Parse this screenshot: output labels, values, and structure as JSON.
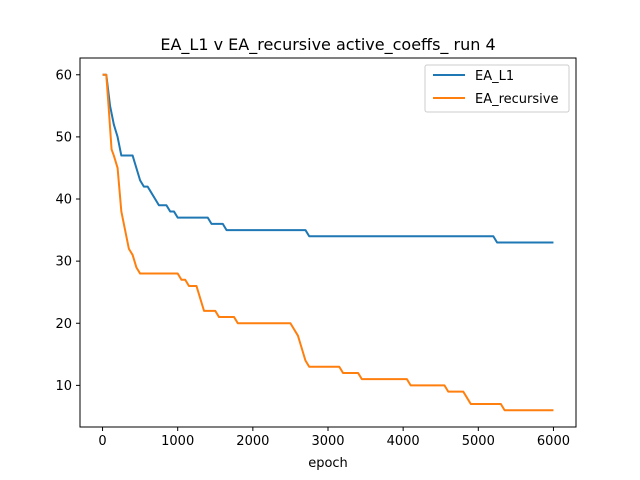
{
  "chart_data": {
    "type": "line",
    "title": "EA_L1 v EA_recursive active_coeffs_ run 4",
    "xlabel": "epoch",
    "ylabel": "",
    "xlim": [
      -300,
      6300
    ],
    "ylim": [
      3.3,
      62.7
    ],
    "xticks": [
      0,
      1000,
      2000,
      3000,
      4000,
      5000,
      6000
    ],
    "yticks": [
      10,
      20,
      30,
      40,
      50,
      60
    ],
    "legend_position": "top-right",
    "series": [
      {
        "name": "EA_L1",
        "color": "#1f77b4",
        "x": [
          0,
          50,
          100,
          150,
          200,
          250,
          300,
          400,
          500,
          550,
          600,
          650,
          700,
          750,
          800,
          850,
          900,
          950,
          1000,
          1050,
          1100,
          1200,
          1300,
          1400,
          1450,
          1500,
          1600,
          1650,
          1700,
          1800,
          2000,
          2200,
          2500,
          2700,
          2750,
          2800,
          3000,
          4000,
          5000,
          5200,
          5250,
          6000
        ],
        "y": [
          60,
          60,
          55,
          52,
          50,
          47,
          47,
          47,
          43,
          42,
          42,
          41,
          40,
          39,
          39,
          39,
          38,
          38,
          37,
          37,
          37,
          37,
          37,
          37,
          36,
          36,
          36,
          35,
          35,
          35,
          35,
          35,
          35,
          35,
          34,
          34,
          34,
          34,
          34,
          34,
          33,
          33
        ]
      },
      {
        "name": "EA_recursive",
        "color": "#ff7f0e",
        "x": [
          0,
          50,
          80,
          120,
          150,
          200,
          250,
          300,
          350,
          400,
          450,
          500,
          600,
          700,
          800,
          900,
          1000,
          1050,
          1100,
          1150,
          1200,
          1250,
          1300,
          1350,
          1400,
          1450,
          1500,
          1550,
          1600,
          1650,
          1700,
          1750,
          1800,
          2000,
          2200,
          2400,
          2500,
          2600,
          2650,
          2700,
          2750,
          2800,
          3000,
          3100,
          3150,
          3200,
          3300,
          3400,
          3450,
          3500,
          3700,
          3900,
          4000,
          4050,
          4100,
          4300,
          4500,
          4550,
          4600,
          4700,
          4800,
          4850,
          4900,
          5000,
          5200,
          5300,
          5350,
          5500,
          6000
        ],
        "y": [
          60,
          60,
          55,
          48,
          47,
          45,
          38,
          35,
          32,
          31,
          29,
          28,
          28,
          28,
          28,
          28,
          28,
          27,
          27,
          26,
          26,
          26,
          24,
          22,
          22,
          22,
          22,
          21,
          21,
          21,
          21,
          21,
          20,
          20,
          20,
          20,
          20,
          18,
          16,
          14,
          13,
          13,
          13,
          13,
          13,
          12,
          12,
          12,
          11,
          11,
          11,
          11,
          11,
          11,
          10,
          10,
          10,
          10,
          9,
          9,
          9,
          8,
          7,
          7,
          7,
          7,
          6,
          6,
          6
        ]
      }
    ]
  }
}
